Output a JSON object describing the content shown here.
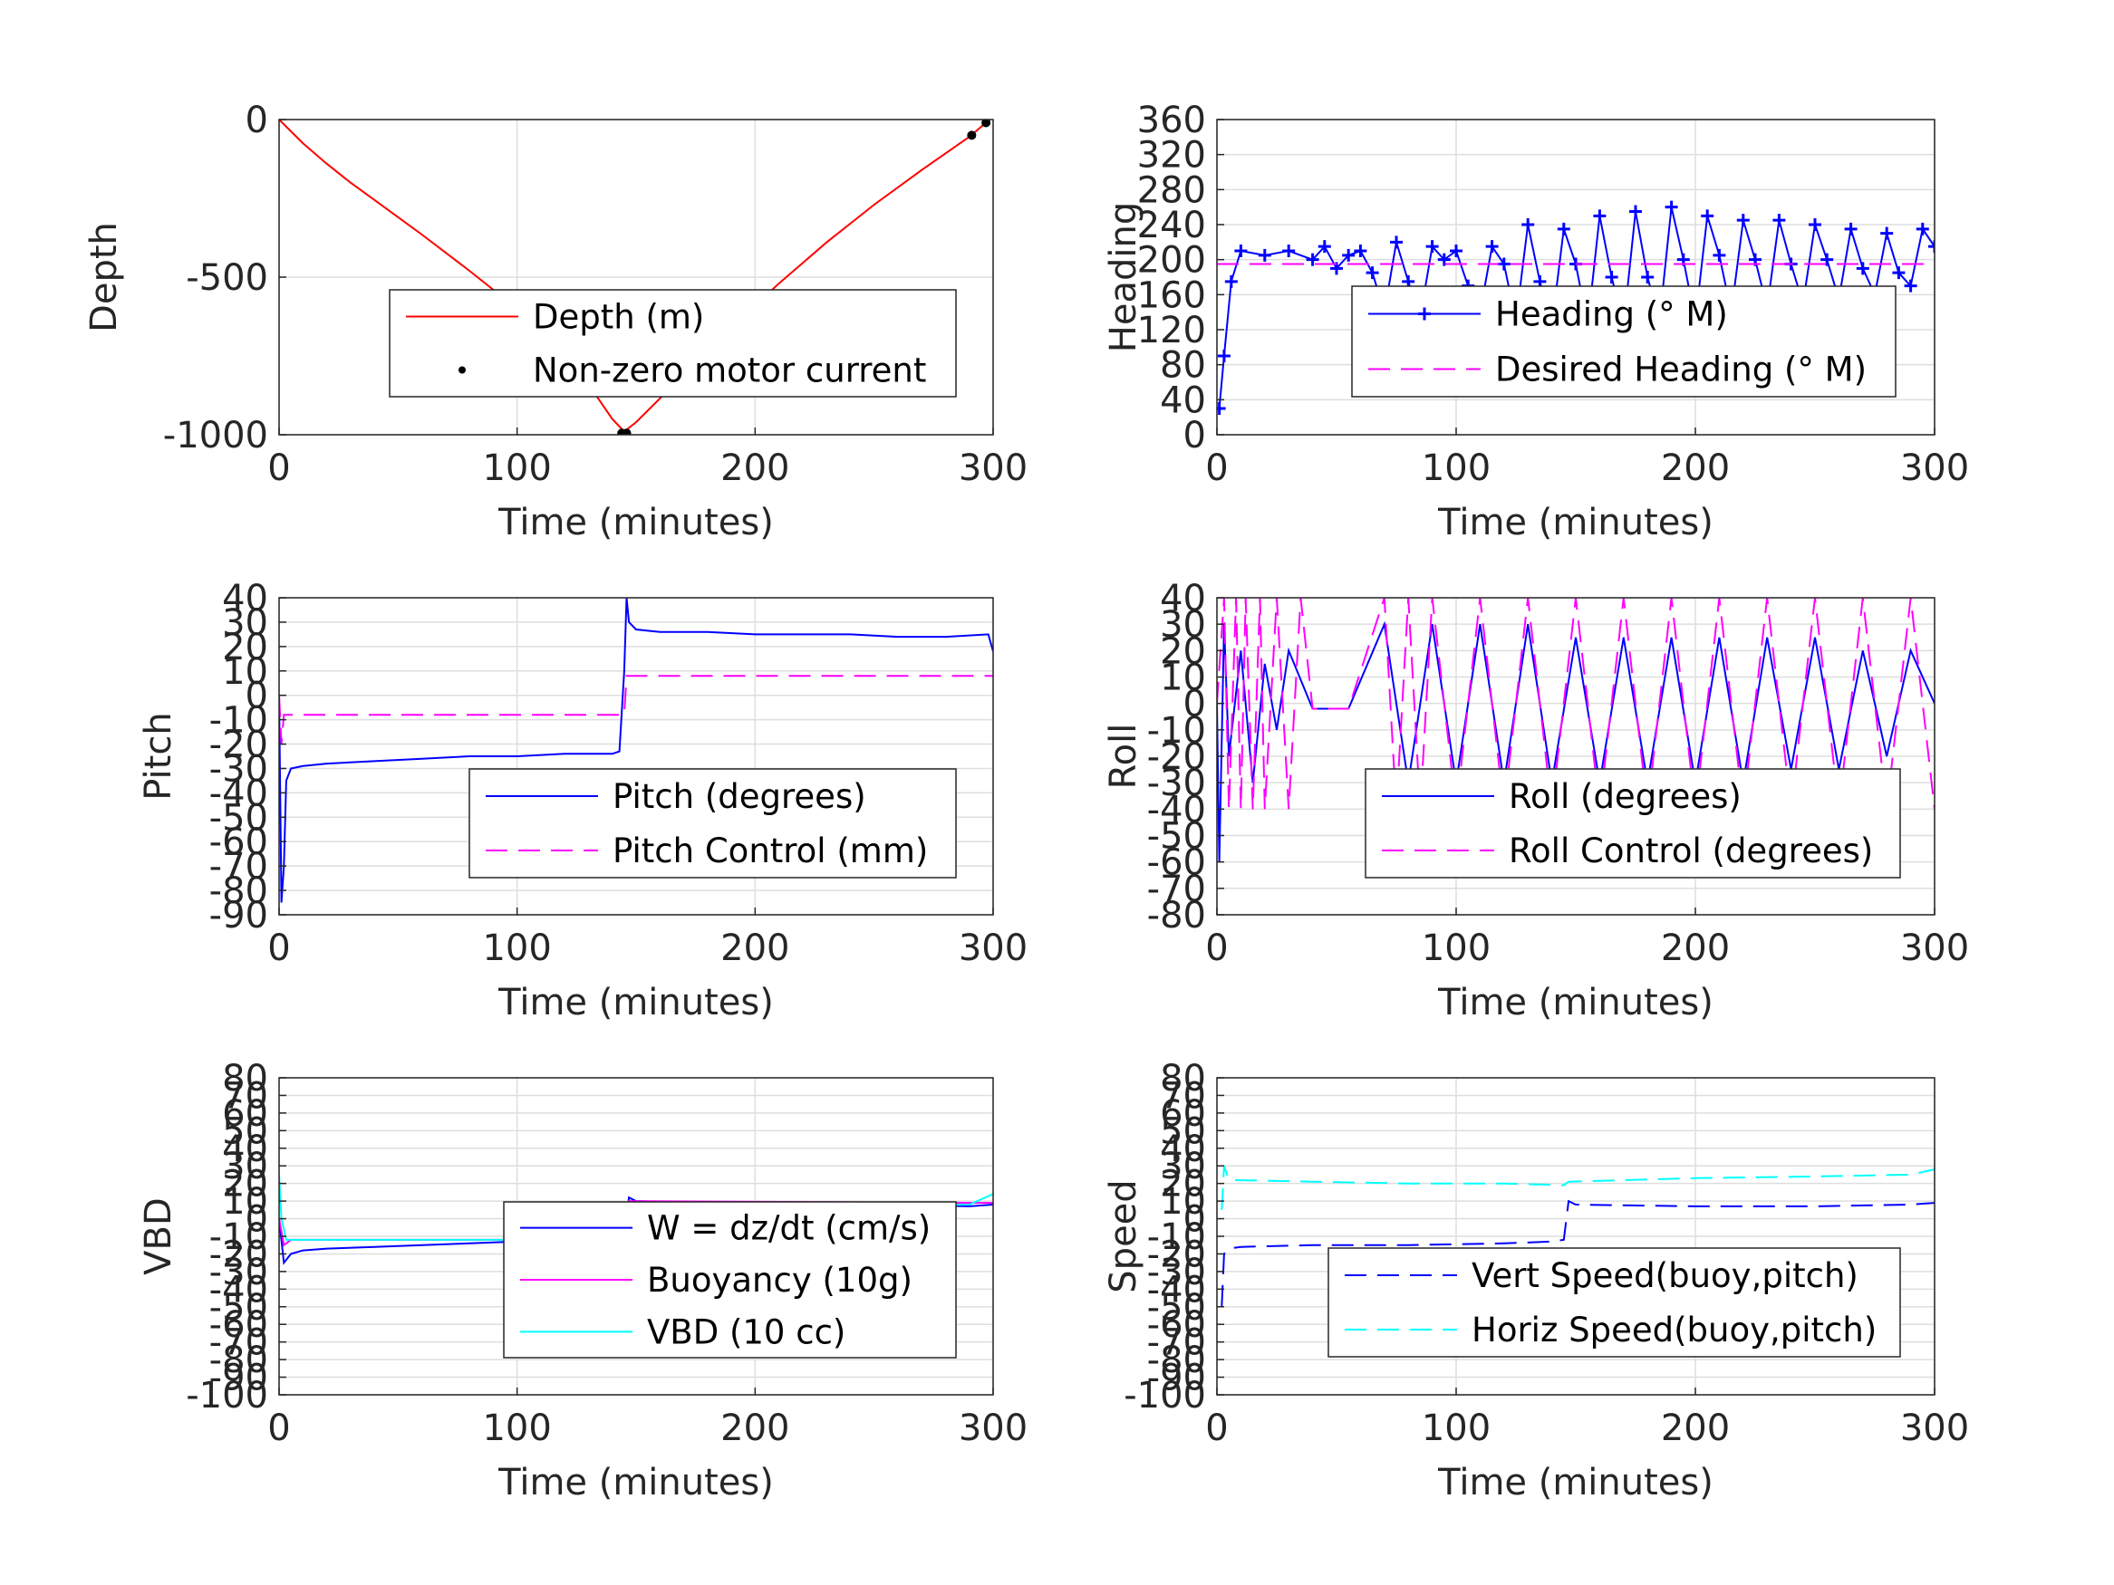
{
  "chart_data": [
    {
      "type": "line",
      "xlabel": "Time (minutes)",
      "ylabel": "Depth",
      "xlim": [
        0,
        300
      ],
      "ylim": [
        -1000,
        0
      ],
      "xticks": [
        0,
        100,
        200,
        300
      ],
      "xtick_labels": [
        "0",
        "100",
        "200",
        "300"
      ],
      "yticks": [
        -1000,
        -500,
        0
      ],
      "ytick_labels": [
        "-1000",
        "-500",
        "0"
      ],
      "grid": true,
      "legend_position": "lower-center",
      "series": [
        {
          "name": "Depth (m)",
          "color": "#ff0000",
          "style": "solid",
          "x": [
            0,
            10,
            20,
            30,
            40,
            60,
            80,
            100,
            120,
            140,
            145,
            150,
            170,
            190,
            210,
            230,
            250,
            270,
            290,
            297
          ],
          "y": [
            0,
            -75,
            -140,
            -200,
            -255,
            -365,
            -480,
            -600,
            -730,
            -950,
            -990,
            -960,
            -810,
            -660,
            -520,
            -390,
            -270,
            -160,
            -55,
            -10
          ]
        },
        {
          "name": "Non-zero motor current",
          "color": "#000000",
          "style": "dots",
          "x": [
            144,
            146,
            291,
            297
          ],
          "y": [
            -995,
            -995,
            -50,
            -10
          ]
        }
      ]
    },
    {
      "type": "line",
      "xlabel": "Time (minutes)",
      "ylabel": "Heading",
      "xlim": [
        0,
        300
      ],
      "ylim": [
        0,
        360
      ],
      "xticks": [
        0,
        100,
        200,
        300
      ],
      "xtick_labels": [
        "0",
        "100",
        "200",
        "300"
      ],
      "yticks": [
        0,
        40,
        80,
        120,
        160,
        200,
        240,
        280,
        320,
        360
      ],
      "ytick_labels": [
        "0",
        "40",
        "80",
        "120",
        "160",
        "200",
        "240",
        "280",
        "320",
        "360"
      ],
      "grid": true,
      "legend_position": "lower-center",
      "series": [
        {
          "name": "Heading (° M)",
          "color": "#0000ff",
          "style": "plus-markers",
          "x": [
            1,
            3,
            6,
            10,
            20,
            30,
            40,
            45,
            50,
            55,
            60,
            65,
            70,
            75,
            80,
            85,
            90,
            95,
            100,
            105,
            110,
            115,
            120,
            125,
            130,
            135,
            140,
            145,
            150,
            155,
            160,
            165,
            170,
            175,
            180,
            185,
            190,
            195,
            200,
            205,
            210,
            215,
            220,
            225,
            230,
            235,
            240,
            245,
            250,
            255,
            260,
            265,
            270,
            275,
            280,
            285,
            290,
            295,
            300
          ],
          "y": [
            30,
            90,
            175,
            210,
            205,
            210,
            200,
            215,
            190,
            205,
            210,
            185,
            140,
            220,
            175,
            135,
            215,
            200,
            210,
            170,
            140,
            215,
            195,
            130,
            240,
            175,
            125,
            235,
            195,
            125,
            250,
            180,
            125,
            255,
            180,
            130,
            260,
            200,
            130,
            250,
            205,
            140,
            245,
            200,
            145,
            245,
            195,
            150,
            240,
            200,
            155,
            235,
            190,
            160,
            230,
            185,
            170,
            235,
            215
          ]
        },
        {
          "name": "Desired Heading (° M)",
          "color": "#ff00ff",
          "style": "dashed",
          "x": [
            0,
            300
          ],
          "y": [
            195,
            195
          ]
        }
      ]
    },
    {
      "type": "line",
      "xlabel": "Time (minutes)",
      "ylabel": "Pitch",
      "xlim": [
        0,
        300
      ],
      "ylim": [
        -90,
        40
      ],
      "xticks": [
        0,
        100,
        200,
        300
      ],
      "xtick_labels": [
        "0",
        "100",
        "200",
        "300"
      ],
      "yticks": [
        -90,
        -80,
        -70,
        -60,
        -50,
        -40,
        -30,
        -20,
        -10,
        0,
        10,
        20,
        30,
        40
      ],
      "ytick_labels": [
        "-90",
        "-80",
        "-70",
        "-60",
        "-50",
        "-40",
        "-30",
        "-20",
        "-10",
        "0",
        "10",
        "20",
        "30",
        "40"
      ],
      "grid": true,
      "legend_position": "lower-center",
      "series": [
        {
          "name": "Pitch (degrees)",
          "color": "#0000ff",
          "style": "solid",
          "x": [
            0,
            1,
            2,
            3,
            5,
            10,
            20,
            40,
            60,
            80,
            100,
            120,
            140,
            143,
            145,
            146,
            147,
            150,
            160,
            180,
            200,
            220,
            240,
            260,
            280,
            298,
            300
          ],
          "y": [
            0,
            -85,
            -70,
            -35,
            -30,
            -29,
            -28,
            -27,
            -26,
            -25,
            -25,
            -24,
            -24,
            -23,
            10,
            40,
            30,
            27,
            26,
            26,
            25,
            25,
            25,
            24,
            24,
            25,
            18
          ]
        },
        {
          "name": "Pitch Control (mm)",
          "color": "#ff00ff",
          "style": "dashed",
          "x": [
            0,
            1,
            2,
            145,
            146,
            300
          ],
          "y": [
            0,
            -20,
            -8,
            -8,
            8,
            8
          ]
        }
      ]
    },
    {
      "type": "line",
      "xlabel": "Time (minutes)",
      "ylabel": "Roll",
      "xlim": [
        0,
        300
      ],
      "ylim": [
        -80,
        40
      ],
      "xticks": [
        0,
        100,
        200,
        300
      ],
      "xtick_labels": [
        "0",
        "100",
        "200",
        "300"
      ],
      "yticks": [
        -80,
        -70,
        -60,
        -50,
        -40,
        -30,
        -20,
        -10,
        0,
        10,
        20,
        30,
        40
      ],
      "ytick_labels": [
        "-80",
        "-70",
        "-60",
        "-50",
        "-40",
        "-30",
        "-20",
        "-10",
        "0",
        "10",
        "20",
        "30",
        "40"
      ],
      "grid": true,
      "legend_position": "lower-center",
      "series": [
        {
          "name": "Roll (degrees)",
          "color": "#0000ff",
          "style": "solid",
          "x": [
            0,
            1,
            3,
            5,
            10,
            15,
            20,
            25,
            30,
            40,
            55,
            70,
            80,
            90,
            100,
            110,
            120,
            130,
            140,
            150,
            160,
            170,
            180,
            190,
            200,
            210,
            220,
            230,
            240,
            250,
            260,
            270,
            280,
            290,
            300
          ],
          "y": [
            0,
            -60,
            30,
            -20,
            20,
            -30,
            15,
            -10,
            20,
            -2,
            -2,
            30,
            -30,
            30,
            -30,
            30,
            -30,
            30,
            -30,
            25,
            -30,
            25,
            -30,
            25,
            -30,
            25,
            -30,
            25,
            -25,
            25,
            -25,
            20,
            -20,
            20,
            0
          ]
        },
        {
          "name": "Roll Control (degrees)",
          "color": "#ff00ff",
          "style": "dashed",
          "x": [
            0,
            3,
            5,
            8,
            10,
            12,
            15,
            18,
            20,
            25,
            30,
            35,
            40,
            55,
            70,
            75,
            80,
            85,
            90,
            100,
            110,
            120,
            130,
            140,
            150,
            160,
            170,
            180,
            190,
            200,
            210,
            220,
            230,
            240,
            250,
            260,
            270,
            280,
            290,
            300
          ],
          "y": [
            0,
            40,
            -40,
            40,
            -40,
            40,
            -40,
            40,
            -40,
            40,
            -40,
            40,
            -2,
            -2,
            40,
            -40,
            40,
            -40,
            40,
            -40,
            40,
            -40,
            40,
            -40,
            40,
            -40,
            40,
            -40,
            40,
            -40,
            40,
            -40,
            40,
            -40,
            40,
            -40,
            40,
            -40,
            40,
            -40
          ]
        }
      ]
    },
    {
      "type": "line",
      "xlabel": "Time (minutes)",
      "ylabel": "VBD",
      "xlim": [
        0,
        300
      ],
      "ylim": [
        -100,
        80
      ],
      "xticks": [
        0,
        100,
        200,
        300
      ],
      "xtick_labels": [
        "0",
        "100",
        "200",
        "300"
      ],
      "yticks": [
        -100,
        -90,
        -80,
        -70,
        -60,
        -50,
        -40,
        -30,
        -20,
        -10,
        0,
        10,
        20,
        30,
        40,
        50,
        60,
        70,
        80
      ],
      "ytick_labels": [
        "-100",
        "-90",
        "-80",
        "-70",
        "-60",
        "-50",
        "-40",
        "-30",
        "-20",
        "-10",
        "0",
        "10",
        "20",
        "30",
        "40",
        "50",
        "60",
        "70",
        "80"
      ],
      "grid": true,
      "legend_position": "lower-center",
      "series": [
        {
          "name": "W = dz/dt (cm/s)",
          "color": "#0000ff",
          "style": "solid",
          "x": [
            0,
            2,
            5,
            10,
            20,
            40,
            60,
            80,
            100,
            120,
            140,
            145,
            147,
            150,
            180,
            220,
            260,
            290,
            300
          ],
          "y": [
            0,
            -25,
            -20,
            -18,
            -17,
            -16,
            -15,
            -14,
            -13,
            -12,
            -11,
            -11,
            12,
            10,
            9,
            8,
            8,
            7,
            8
          ]
        },
        {
          "name": "Buoyancy (10g)",
          "color": "#ff00ff",
          "style": "solid",
          "x": [
            0,
            2,
            5,
            145,
            147,
            300
          ],
          "y": [
            0,
            -15,
            -12,
            -12,
            10,
            9
          ]
        },
        {
          "name": "VBD (10 cc)",
          "color": "#00ffff",
          "style": "solid",
          "x": [
            0,
            1,
            3,
            145,
            147,
            290,
            300
          ],
          "y": [
            25,
            0,
            -12,
            -12,
            8,
            8,
            14
          ]
        }
      ]
    },
    {
      "type": "line",
      "xlabel": "Time (minutes)",
      "ylabel": "Speed",
      "xlim": [
        0,
        300
      ],
      "ylim": [
        -100,
        80
      ],
      "xticks": [
        0,
        100,
        200,
        300
      ],
      "xtick_labels": [
        "0",
        "100",
        "200",
        "300"
      ],
      "yticks": [
        -100,
        -90,
        -80,
        -70,
        -60,
        -50,
        -40,
        -30,
        -20,
        -10,
        0,
        10,
        20,
        30,
        40,
        50,
        60,
        70,
        80
      ],
      "ytick_labels": [
        "-100",
        "-90",
        "-80",
        "-70",
        "-60",
        "-50",
        "-40",
        "-30",
        "-20",
        "-10",
        "0",
        "10",
        "20",
        "30",
        "40",
        "50",
        "60",
        "70",
        "80"
      ],
      "grid": true,
      "legend_position": "lower-center",
      "series": [
        {
          "name": "Vert Speed(buoy,pitch)",
          "color": "#0000ff",
          "style": "dashed",
          "x": [
            2,
            3,
            5,
            10,
            40,
            80,
            120,
            140,
            145,
            147,
            150,
            200,
            250,
            290,
            300
          ],
          "y": [
            -50,
            -20,
            -17,
            -16,
            -15,
            -15,
            -14,
            -13,
            -12,
            10,
            8,
            7,
            7,
            8,
            9
          ]
        },
        {
          "name": "Horiz Speed(buoy,pitch)",
          "color": "#00ffff",
          "style": "dashed",
          "x": [
            2,
            3,
            5,
            40,
            80,
            120,
            145,
            147,
            200,
            250,
            290,
            300
          ],
          "y": [
            5,
            30,
            22,
            21,
            20,
            20,
            19,
            21,
            23,
            24,
            25,
            28
          ]
        }
      ]
    }
  ]
}
